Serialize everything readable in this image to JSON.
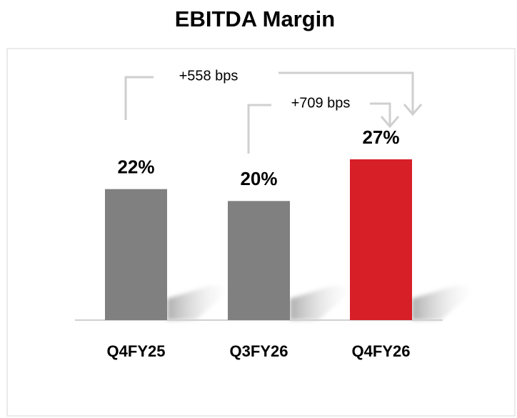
{
  "chart_data": {
    "type": "bar",
    "title": "EBITDA Margin",
    "categories": [
      "Q4FY25",
      "Q3FY26",
      "Q4FY26"
    ],
    "values": [
      22,
      20,
      27
    ],
    "value_labels": [
      "22%",
      "20%",
      "27%"
    ],
    "colors": [
      "#808080",
      "#808080",
      "#d71f27"
    ],
    "annotations": [
      "+558 bps",
      "+709 bps"
    ]
  }
}
